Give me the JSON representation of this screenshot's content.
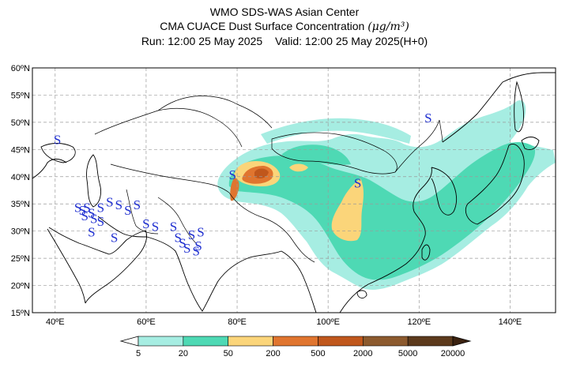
{
  "header": {
    "line1": "WMO SDS-WAS Asian Center",
    "line2_text": "CMA CUACE Dust Surface Concentration",
    "line2_unit": "(μg/m³)",
    "run": "Run: 12:00 25 May 2025",
    "valid": "Valid: 12:00 25 May 2025(H+0)"
  },
  "map": {
    "lon_range": [
      35,
      150
    ],
    "lat_range": [
      15,
      60
    ],
    "lat_labels": [
      "60ºN",
      "55ºN",
      "50ºN",
      "45ºN",
      "40ºN",
      "35ºN",
      "30ºN",
      "25ºN",
      "20ºN",
      "15ºN"
    ],
    "lat_values": [
      60,
      55,
      50,
      45,
      40,
      35,
      30,
      25,
      20,
      15
    ],
    "lon_labels": [
      "40ºE",
      "60ºE",
      "80ºE",
      "100ºE",
      "120ºE",
      "140ºE"
    ],
    "lon_values": [
      40,
      60,
      80,
      100,
      120,
      140
    ],
    "gridlines": "dashed",
    "dust_symbol": "S",
    "dust_symbol_color": "#1f2fd0",
    "dust_reports": [
      [
        40.5,
        46
      ],
      [
        45,
        33.5
      ],
      [
        46,
        33
      ],
      [
        46.5,
        32
      ],
      [
        47,
        33.5
      ],
      [
        48,
        32.5
      ],
      [
        48.5,
        31.5
      ],
      [
        50,
        33.5
      ],
      [
        52,
        34.5
      ],
      [
        54,
        34
      ],
      [
        56,
        33
      ],
      [
        58,
        34
      ],
      [
        48,
        29
      ],
      [
        50,
        31
      ],
      [
        53,
        28
      ],
      [
        60,
        30.5
      ],
      [
        62,
        30
      ],
      [
        66,
        30
      ],
      [
        67,
        28
      ],
      [
        68,
        27
      ],
      [
        69,
        26
      ],
      [
        70,
        28.5
      ],
      [
        71,
        25.5
      ],
      [
        72,
        29
      ],
      [
        71.5,
        26.5
      ],
      [
        79,
        39.5
      ],
      [
        106.5,
        38
      ],
      [
        122,
        50
      ]
    ]
  },
  "legend": {
    "levels": [
      "5",
      "20",
      "50",
      "200",
      "500",
      "2000",
      "5000",
      "20000"
    ],
    "colors": [
      "#a6ede2",
      "#4ed9b4",
      "#fbd57a",
      "#e0752f",
      "#c0571c",
      "#8c5a2e",
      "#5c3a1c",
      "#3b2210"
    ]
  }
}
